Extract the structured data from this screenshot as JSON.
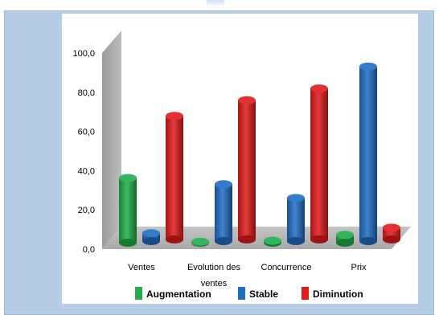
{
  "chart_data": {
    "type": "bar",
    "categories": [
      "Ventes",
      "Evolution des ventes",
      "Concurrence",
      "Prix"
    ],
    "category_lines": [
      [
        "Ventes"
      ],
      [
        "Evolution des",
        "ventes"
      ],
      [
        "Concurrence"
      ],
      [
        "Prix"
      ]
    ],
    "series": [
      {
        "name": "Augmentation",
        "values": [
          33,
          0.5,
          1,
          4
        ],
        "color": "#1fae4a"
      },
      {
        "name": "Stable",
        "values": [
          4,
          29,
          22,
          89
        ],
        "color": "#1f6cc4"
      },
      {
        "name": "Diminution",
        "values": [
          63,
          71,
          77,
          6
        ],
        "color": "#e01a1a"
      }
    ],
    "ylim": [
      0,
      100
    ],
    "yticks": [
      "0,0",
      "20,0",
      "40,0",
      "60,0",
      "80,0",
      "100,0"
    ],
    "grid": false,
    "legend_position": "bottom"
  }
}
